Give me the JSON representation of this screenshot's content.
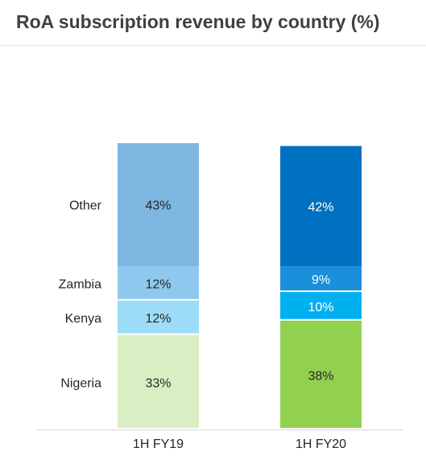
{
  "chart_data": {
    "type": "bar",
    "stacked": true,
    "title": "RoA subscription revenue by country (%)",
    "categories": [
      "1H FY19",
      "1H FY20"
    ],
    "series": [
      {
        "name": "Nigeria",
        "values": [
          33,
          38
        ],
        "labels": [
          "33%",
          "38%"
        ],
        "colors": [
          "#d9efc3",
          "#92d050"
        ],
        "text_colors": [
          "#262626",
          "#262626"
        ]
      },
      {
        "name": "Kenya",
        "values": [
          12,
          10
        ],
        "labels": [
          "12%",
          "10%"
        ],
        "colors": [
          "#9ddcf8",
          "#00b0f0"
        ],
        "text_colors": [
          "#262626",
          "#ffffff"
        ]
      },
      {
        "name": "Zambia",
        "values": [
          12,
          9
        ],
        "labels": [
          "12%",
          "9%"
        ],
        "colors": [
          "#8ec8ee",
          "#1a8fdc"
        ],
        "text_colors": [
          "#262626",
          "#ffffff"
        ]
      },
      {
        "name": "Other",
        "values": [
          43,
          42
        ],
        "labels": [
          "43%",
          "42%"
        ],
        "colors": [
          "#7eb6e2",
          "#0070c0"
        ],
        "text_colors": [
          "#262626",
          "#ffffff"
        ]
      }
    ],
    "ylim": [
      0,
      100
    ],
    "legend": "left, inline with segments"
  }
}
